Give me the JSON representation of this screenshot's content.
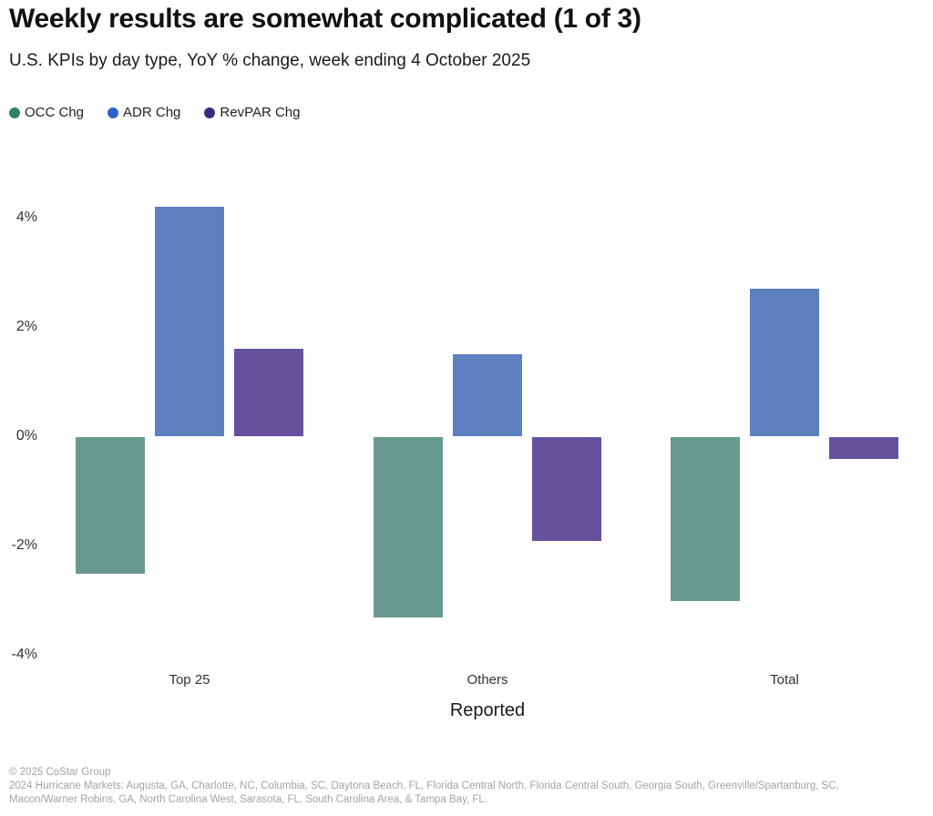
{
  "header": {
    "title": "Weekly results are somewhat complicated (1 of 3)",
    "subtitle": "U.S. KPIs by day type, YoY % change, week ending 4 October 2025"
  },
  "legend": {
    "items": [
      {
        "label": "OCC Chg",
        "color": "#2e8162"
      },
      {
        "label": "ADR Chg",
        "color": "#2c63c8"
      },
      {
        "label": "RevPAR Chg",
        "color": "#3a2b82"
      }
    ]
  },
  "chart_data": {
    "type": "bar",
    "title": "U.S. KPIs by day type, YoY % change, week ending 4 October 2025",
    "categories": [
      "Top 25",
      "Others",
      "Total"
    ],
    "series": [
      {
        "name": "OCC Chg",
        "color": "#68998e",
        "values": [
          -2.5,
          -3.3,
          -3.0
        ]
      },
      {
        "name": "ADR Chg",
        "color": "#5c80c0",
        "values": [
          4.2,
          1.5,
          2.7
        ]
      },
      {
        "name": "RevPAR Chg",
        "color": "#65509d",
        "values": [
          1.6,
          -1.9,
          -0.4
        ]
      }
    ],
    "unit": "%",
    "xlabel": "Reported",
    "ylabel": "",
    "y_ticks": [
      4,
      2,
      0,
      -2,
      -4
    ],
    "y_tick_labels": [
      "4%",
      "2%",
      "0%",
      "-2%",
      "-4%"
    ],
    "ylim": [
      -4.7,
      5.0
    ],
    "grid": false,
    "legend_position": "top-left"
  },
  "footer": {
    "line1": "© 2025 CoStar Group",
    "line2": "2024 Hurricane Markets: Augusta, GA, Charlotte, NC, Columbia, SC, Daytona Beach, FL, Florida Central North, Florida Central South, Georgia South, Greenville/Spartanburg, SC,",
    "line3": "Macon/Warner Robins, GA, North Carolina West, Sarasota, FL, South Carolina Area, & Tampa Bay, FL."
  }
}
